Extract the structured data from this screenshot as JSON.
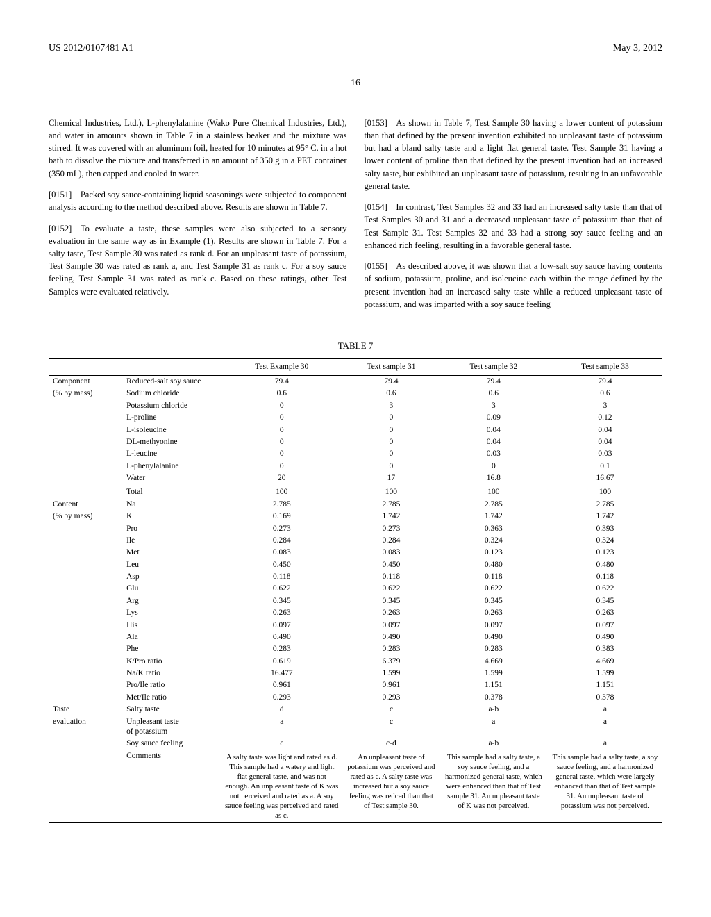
{
  "header": {
    "pub_number": "US 2012/0107481 A1",
    "pub_date": "May 3, 2012",
    "page_number": "16"
  },
  "col_left": {
    "p150_pre": "Chemical Industries, Ltd.), L-phenylalanine (Wako Pure Chemical Industries, Ltd.), and water in amounts shown in Table 7 in a stainless beaker and the mixture was stirred. It was covered with an aluminum foil, heated for 10 minutes at 95° C. in a hot bath to dissolve the mixture and transferred in an amount of 350 g in a PET container (350 mL), then capped and cooled in water.",
    "p151": "[0151] Packed soy sauce-containing liquid seasonings were subjected to component analysis according to the method described above. Results are shown in Table 7.",
    "p152": "[0152] To evaluate a taste, these samples were also subjected to a sensory evaluation in the same way as in Example (1). Results are shown in Table 7. For a salty taste, Test Sample 30 was rated as rank d. For an unpleasant taste of potassium, Test Sample 30 was rated as rank a, and Test Sample 31 as rank c. For a soy sauce feeling, Test Sample 31 was rated as rank c. Based on these ratings, other Test Samples were evaluated relatively."
  },
  "col_right": {
    "p153": "[0153] As shown in Table 7, Test Sample 30 having a lower content of potassium than that defined by the present invention exhibited no unpleasant taste of potassium but had a bland salty taste and a light flat general taste. Test Sample 31 having a lower content of proline than that defined by the present invention had an increased salty taste, but exhibited an unpleasant taste of potassium, resulting in an unfavorable general taste.",
    "p154": "[0154] In contrast, Test Samples 32 and 33 had an increased salty taste than that of Test Samples 30 and 31 and a decreased unpleasant taste of potassium than that of Test Sample 31. Test Samples 32 and 33 had a strong soy sauce feeling and an enhanced rich feeling, resulting in a favorable general taste.",
    "p155": "[0155] As described above, it was shown that a low-salt soy sauce having contents of sodium, potassium, proline, and isoleucine each within the range defined by the present invention had an increased salty taste while a reduced unpleasant taste of potassium, and was imparted with a soy sauce feeling"
  },
  "table": {
    "caption": "TABLE 7",
    "cols": [
      "Test Example 30",
      "Text sample 31",
      "Test sample 32",
      "Test sample 33"
    ],
    "section1": {
      "label": "Component (% by mass)",
      "rows": [
        [
          "Reduced-salt soy sauce",
          "79.4",
          "79.4",
          "79.4",
          "79.4"
        ],
        [
          "Sodium chloride",
          "0.6",
          "0.6",
          "0.6",
          "0.6"
        ],
        [
          "Potassium chloride",
          "0",
          "3",
          "3",
          "3"
        ],
        [
          "L-proline",
          "0",
          "0",
          "0.09",
          "0.12"
        ],
        [
          "L-isoleucine",
          "0",
          "0",
          "0.04",
          "0.04"
        ],
        [
          "DL-methyonine",
          "0",
          "0",
          "0.04",
          "0.04"
        ],
        [
          "L-leucine",
          "0",
          "0",
          "0.03",
          "0.03"
        ],
        [
          "L-phenylalanine",
          "0",
          "0",
          "0",
          "0.1"
        ],
        [
          "Water",
          "20",
          "17",
          "16.8",
          "16.67"
        ]
      ],
      "total": [
        "Total",
        "100",
        "100",
        "100",
        "100"
      ]
    },
    "section2": {
      "label": "Content (% by mass)",
      "rows": [
        [
          "Na",
          "2.785",
          "2.785",
          "2.785",
          "2.785"
        ],
        [
          "K",
          "0.169",
          "1.742",
          "1.742",
          "1.742"
        ],
        [
          "Pro",
          "0.273",
          "0.273",
          "0.363",
          "0.393"
        ],
        [
          "Ile",
          "0.284",
          "0.284",
          "0.324",
          "0.324"
        ],
        [
          "Met",
          "0.083",
          "0.083",
          "0.123",
          "0.123"
        ],
        [
          "Leu",
          "0.450",
          "0.450",
          "0.480",
          "0.480"
        ],
        [
          "Asp",
          "0.118",
          "0.118",
          "0.118",
          "0.118"
        ],
        [
          "Glu",
          "0.622",
          "0.622",
          "0.622",
          "0.622"
        ],
        [
          "Arg",
          "0.345",
          "0.345",
          "0.345",
          "0.345"
        ],
        [
          "Lys",
          "0.263",
          "0.263",
          "0.263",
          "0.263"
        ],
        [
          "His",
          "0.097",
          "0.097",
          "0.097",
          "0.097"
        ],
        [
          "Ala",
          "0.490",
          "0.490",
          "0.490",
          "0.490"
        ],
        [
          "Phe",
          "0.283",
          "0.283",
          "0.283",
          "0.383"
        ],
        [
          "K/Pro ratio",
          "0.619",
          "6.379",
          "4.669",
          "4.669"
        ],
        [
          "Na/K ratio",
          "16.477",
          "1.599",
          "1.599",
          "1.599"
        ],
        [
          "Pro/Ile ratio",
          "0.961",
          "0.961",
          "1.151",
          "1.151"
        ],
        [
          "Met/Ile ratio",
          "0.293",
          "0.293",
          "0.378",
          "0.378"
        ]
      ]
    },
    "section3": {
      "label": "Taste evaluation",
      "rows": [
        [
          "Salty taste",
          "d",
          "c",
          "a-b",
          "a"
        ],
        [
          "Unpleasant taste of potassium",
          "a",
          "c",
          "a",
          "a"
        ],
        [
          "Soy sauce feeling",
          "c",
          "c-d",
          "a-b",
          "a"
        ]
      ],
      "comments_label": "Comments",
      "comments": [
        "A salty taste was light and rated as d. This sample had a watery and light flat general taste, and was not enough. An unpleasant taste of K was not perceived and rated as a. A soy sauce feeling was perceived and rated as c.",
        "An unpleasant taste of potassium was perceived and rated as c. A salty taste was increased but a soy sauce feeling was redced than that of Test sample 30.",
        "This sample had a salty taste, a soy sauce feeling, and a harmonized general taste, which were enhanced than that of Test sample 31. An unpleasant taste of K was not perceived.",
        "This sample had a salty taste, a soy sauce feeling, and a harmonized general taste, which were largely enhanced than that of Test sample 31. An unpleasant taste of potassium was not perceived."
      ]
    }
  }
}
